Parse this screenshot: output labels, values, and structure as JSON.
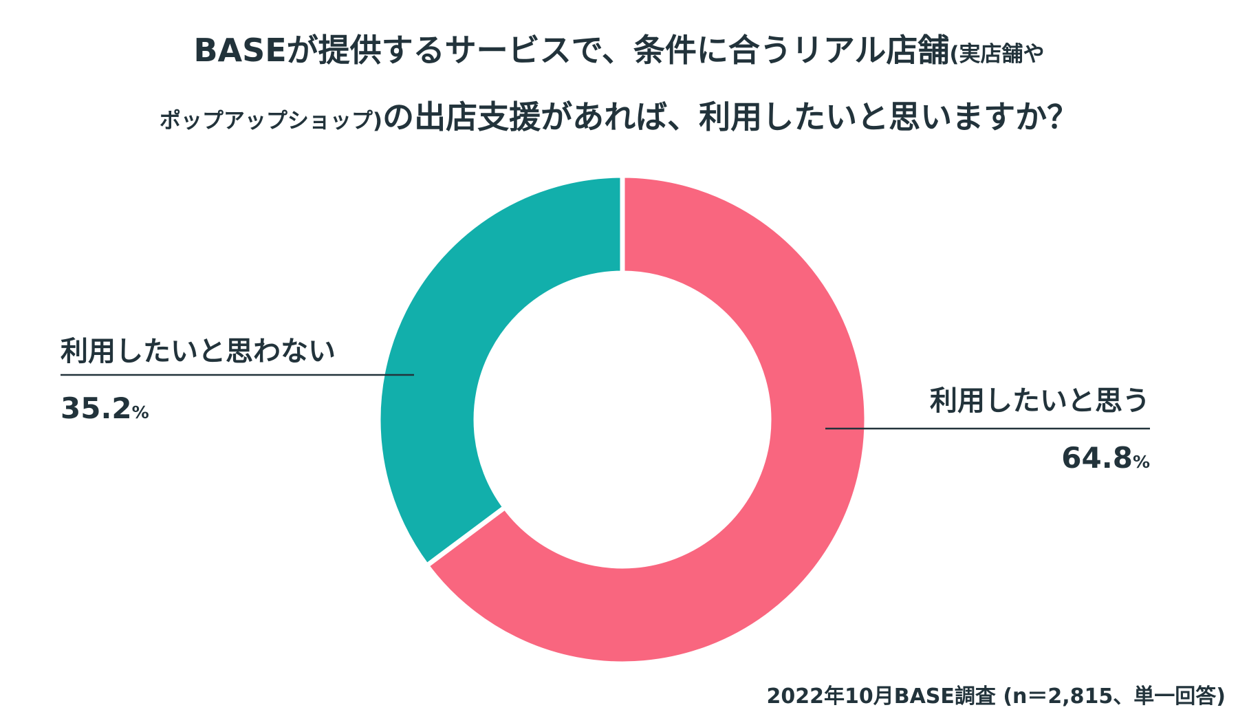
{
  "title": {
    "line1_main": "BASEが提供するサービスで、条件に合うリアル店舗",
    "line1_small": "(実店舗や",
    "line2_small": "ポップアップショップ)",
    "line2_main": "の出店支援があれば、利用したいと思いますか？"
  },
  "colors": {
    "want": "#f9667f",
    "not_want": "#12afab",
    "text": "#22333b"
  },
  "chart_data": {
    "type": "pie",
    "style": "donut",
    "title": "BASEが提供するサービスで、条件に合うリアル店舗(実店舗やポップアップショップ)の出店支援があれば、利用したいと思いますか？",
    "slices": [
      {
        "label": "利用したいと思う",
        "value": 64.8,
        "value_text": "64.8",
        "unit": "%",
        "color": "#f9667f"
      },
      {
        "label": "利用したいと思わない",
        "value": 35.2,
        "value_text": "35.2",
        "unit": "%",
        "color": "#12afab"
      }
    ],
    "start": "top",
    "direction": "clockwise"
  },
  "footnote": "2022年10月BASE調査 (n＝2,815、単一回答)"
}
